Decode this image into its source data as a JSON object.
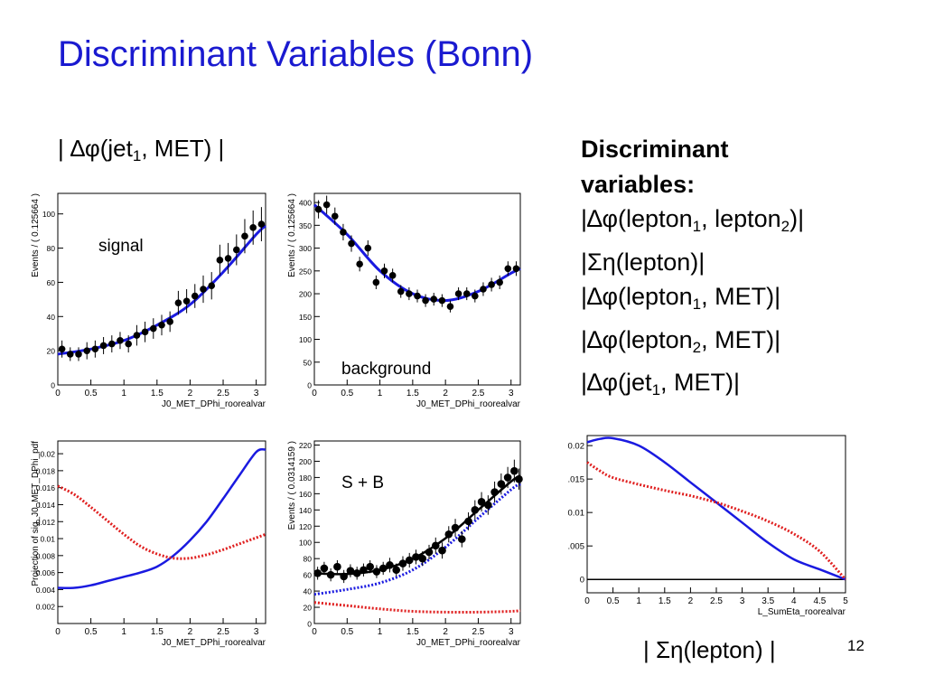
{
  "slide": {
    "title": "Discriminant Variables (Bonn)",
    "page_number": "12",
    "top_label": {
      "pre": "| ∆φ(jet",
      "sub": "1",
      "post": ", MET) |"
    },
    "bottom_label": "| Ση(lepton) |"
  },
  "variables": {
    "header_1": "Discriminant",
    "header_2": "variables:",
    "items": [
      {
        "pre": "|∆φ(lepton",
        "sub": "1",
        "mid": ", lepton",
        "sub2": "2",
        "post": ")|"
      },
      {
        "pre": "|Ση(lepton)|",
        "sub": "",
        "mid": "",
        "sub2": "",
        "post": ""
      },
      {
        "pre": "|∆φ(lepton",
        "sub": "1",
        "mid": ", MET)|",
        "sub2": "",
        "post": ""
      },
      {
        "pre": "|∆φ(lepton",
        "sub": "2",
        "mid": ", MET)|",
        "sub2": "",
        "post": ""
      },
      {
        "pre": "|∆φ(jet",
        "sub": "1",
        "mid": ", MET)|",
        "sub2": "",
        "post": ""
      }
    ]
  },
  "colors": {
    "title": "#1a1ad0",
    "fit_line": "#1a1ae0",
    "background_line": "#e02020",
    "points": "#000000"
  },
  "chart_data": [
    {
      "id": "signal",
      "type": "scatter",
      "xlabel": "J0_MET_DPhi_roorealvar",
      "ylabel": "Events / ( 0.125664 )",
      "annotation": "signal",
      "xlim": [
        0,
        3.1416
      ],
      "ylim": [
        0,
        112
      ],
      "xticks": [
        0,
        0.5,
        1,
        1.5,
        2,
        2.5,
        3
      ],
      "xtick_labels": [
        "0",
        "0.5",
        "1",
        "1.5",
        "2",
        "2.5",
        "3"
      ],
      "yticks": [
        0,
        20,
        40,
        60,
        80,
        100
      ],
      "ytick_labels": [
        "0",
        "20",
        "40",
        "60",
        "80",
        "100"
      ],
      "points": {
        "x": [
          0.063,
          0.188,
          0.314,
          0.44,
          0.565,
          0.691,
          0.817,
          0.942,
          1.068,
          1.194,
          1.319,
          1.445,
          1.571,
          1.696,
          1.822,
          1.948,
          2.073,
          2.199,
          2.325,
          2.45,
          2.576,
          2.702,
          2.827,
          2.953,
          3.079
        ],
        "y": [
          21,
          18,
          18,
          20,
          21,
          23,
          24,
          26,
          24,
          29,
          31,
          33,
          35,
          37,
          48,
          49,
          52,
          56,
          58,
          73,
          74,
          79,
          87,
          92,
          94
        ],
        "err": [
          5,
          4,
          4,
          5,
          5,
          5,
          5,
          5,
          5,
          6,
          6,
          6,
          6,
          6,
          7,
          7,
          7,
          8,
          8,
          9,
          9,
          9,
          10,
          10,
          10
        ]
      },
      "fit": {
        "x": [
          0,
          0.5,
          1,
          1.5,
          2,
          2.5,
          3,
          3.1416
        ],
        "y": [
          18,
          21,
          26,
          35,
          47,
          66,
          88,
          93
        ]
      }
    },
    {
      "id": "background",
      "type": "scatter",
      "xlabel": "J0_MET_DPhi_roorealvar",
      "ylabel": "Events / ( 0.125664 )",
      "annotation": "background",
      "xlim": [
        0,
        3.1416
      ],
      "ylim": [
        0,
        420
      ],
      "xticks": [
        0,
        0.5,
        1,
        1.5,
        2,
        2.5,
        3
      ],
      "xtick_labels": [
        "0",
        "0.5",
        "1",
        "1.5",
        "2",
        "2.5",
        "3"
      ],
      "yticks": [
        0,
        50,
        100,
        150,
        200,
        250,
        300,
        350,
        400
      ],
      "ytick_labels": [
        "0",
        "50",
        "100",
        "150",
        "200",
        "250",
        "300",
        "350",
        "400"
      ],
      "points": {
        "x": [
          0.063,
          0.188,
          0.314,
          0.44,
          0.565,
          0.691,
          0.817,
          0.942,
          1.068,
          1.194,
          1.319,
          1.445,
          1.571,
          1.696,
          1.822,
          1.948,
          2.073,
          2.199,
          2.325,
          2.45,
          2.576,
          2.702,
          2.827,
          2.953,
          3.079
        ],
        "y": [
          385,
          395,
          370,
          335,
          310,
          265,
          300,
          225,
          250,
          240,
          205,
          200,
          195,
          185,
          188,
          185,
          172,
          200,
          200,
          195,
          210,
          220,
          225,
          255,
          255
        ],
        "err": [
          20,
          20,
          19,
          18,
          18,
          16,
          17,
          15,
          16,
          15,
          14,
          14,
          14,
          14,
          14,
          14,
          13,
          14,
          14,
          14,
          15,
          15,
          15,
          16,
          16
        ]
      },
      "fit": {
        "x": [
          0,
          0.5,
          1,
          1.5,
          2,
          2.5,
          3,
          3.1416
        ],
        "y": [
          395,
          330,
          250,
          200,
          185,
          205,
          245,
          255
        ]
      }
    },
    {
      "id": "projection",
      "type": "line",
      "xlabel": "J0_MET_DPhi_roorealvar",
      "ylabel": "Projection of sig_J0_MET_DPhi_pdf",
      "xlim": [
        0,
        3.1416
      ],
      "ylim": [
        0,
        0.0215
      ],
      "xticks": [
        0,
        0.5,
        1,
        1.5,
        2,
        2.5,
        3
      ],
      "xtick_labels": [
        "0",
        "0.5",
        "1",
        "1.5",
        "2",
        "2.5",
        "3"
      ],
      "yticks": [
        0.002,
        0.004,
        0.006,
        0.008,
        0.01,
        0.012,
        0.014,
        0.016,
        0.018,
        0.02
      ],
      "ytick_labels": [
        "0.002",
        "0.004",
        "0.006",
        "0.008",
        "0.01",
        "0.012",
        "0.014",
        "0.016",
        "0.018",
        "0.02"
      ],
      "series": [
        {
          "color": "blue",
          "style": "solid",
          "x": [
            0,
            0.25,
            0.5,
            0.75,
            1,
            1.25,
            1.5,
            1.75,
            2,
            2.25,
            2.5,
            2.75,
            3,
            3.1416
          ],
          "y": [
            0.0042,
            0.0042,
            0.0045,
            0.005,
            0.0055,
            0.006,
            0.0067,
            0.008,
            0.0098,
            0.012,
            0.0147,
            0.0175,
            0.0202,
            0.0205
          ]
        },
        {
          "color": "red",
          "style": "dotted",
          "x": [
            0,
            0.25,
            0.5,
            0.75,
            1,
            1.25,
            1.5,
            1.75,
            2,
            2.25,
            2.5,
            2.75,
            3,
            3.1416
          ],
          "y": [
            0.0162,
            0.0152,
            0.0137,
            0.0121,
            0.0105,
            0.0091,
            0.0082,
            0.0077,
            0.0077,
            0.0081,
            0.0087,
            0.0094,
            0.0101,
            0.0105
          ]
        }
      ]
    },
    {
      "id": "s_plus_b",
      "type": "scatter",
      "xlabel": "J0_MET_DPhi_roorealvar",
      "ylabel": "Events / ( 0.0314159 )",
      "annotation": "S + B",
      "xlim": [
        0,
        3.1416
      ],
      "ylim": [
        0,
        225
      ],
      "xticks": [
        0,
        0.5,
        1,
        1.5,
        2,
        2.5,
        3
      ],
      "xtick_labels": [
        "0",
        "0.5",
        "1",
        "1.5",
        "2",
        "2.5",
        "3"
      ],
      "yticks": [
        0,
        20,
        40,
        60,
        80,
        100,
        120,
        140,
        160,
        180,
        200,
        220
      ],
      "ytick_labels": [
        "0",
        "20",
        "40",
        "60",
        "80",
        "100",
        "120",
        "140",
        "160",
        "180",
        "200",
        "220"
      ],
      "points": {
        "x": [
          0.05,
          0.15,
          0.25,
          0.35,
          0.45,
          0.55,
          0.65,
          0.75,
          0.85,
          0.95,
          1.05,
          1.15,
          1.25,
          1.35,
          1.45,
          1.55,
          1.65,
          1.75,
          1.85,
          1.95,
          2.05,
          2.15,
          2.25,
          2.35,
          2.45,
          2.55,
          2.65,
          2.75,
          2.85,
          2.95,
          3.05,
          3.12
        ],
        "y": [
          62,
          68,
          60,
          70,
          58,
          65,
          62,
          66,
          70,
          64,
          68,
          72,
          66,
          74,
          78,
          82,
          80,
          88,
          96,
          90,
          110,
          118,
          104,
          126,
          140,
          150,
          146,
          162,
          172,
          180,
          188,
          178
        ],
        "err": [
          8,
          8,
          8,
          8,
          8,
          8,
          8,
          8,
          8,
          8,
          8,
          9,
          8,
          9,
          9,
          9,
          9,
          9,
          10,
          10,
          10,
          11,
          10,
          11,
          12,
          12,
          12,
          13,
          13,
          13,
          14,
          13
        ]
      },
      "series": [
        {
          "name": "",
          "color": "black",
          "style": "solid",
          "x": [
            0,
            0.5,
            1,
            1.5,
            2,
            2.5,
            3,
            3.1416
          ],
          "y": [
            62,
            61,
            66,
            80,
            105,
            140,
            175,
            182
          ]
        },
        {
          "name": "",
          "color": "blue",
          "style": "dotted",
          "x": [
            0,
            0.5,
            1,
            1.5,
            2,
            2.5,
            3,
            3.1416
          ],
          "y": [
            36,
            42,
            50,
            66,
            94,
            130,
            165,
            172
          ]
        },
        {
          "name": "",
          "color": "red",
          "style": "dotted",
          "x": [
            0,
            0.5,
            1,
            1.5,
            2,
            2.5,
            3,
            3.1416
          ],
          "y": [
            26,
            22,
            18,
            15,
            14,
            14,
            15,
            16
          ]
        }
      ]
    },
    {
      "id": "sum_eta",
      "type": "line",
      "xlabel": "L_SumEta_roorealvar",
      "ylabel": "",
      "xlim": [
        0,
        5
      ],
      "ylim": [
        -0.002,
        0.0215
      ],
      "xticks": [
        0,
        0.5,
        1,
        1.5,
        2,
        2.5,
        3,
        3.5,
        4,
        4.5,
        5
      ],
      "xtick_labels": [
        "0",
        "0.5",
        "1",
        "1.5",
        "2",
        "2.5",
        "3",
        "3.5",
        "4",
        "4.5",
        "5"
      ],
      "yticks": [
        0,
        0.005,
        0.01,
        0.015,
        0.02
      ],
      "ytick_labels": [
        "0",
        ".005",
        "0.01",
        ".015",
        "0.02"
      ],
      "series": [
        {
          "color": "blue",
          "style": "solid",
          "x": [
            0,
            0.25,
            0.5,
            1,
            1.5,
            2,
            2.5,
            3,
            3.5,
            4,
            4.5,
            5
          ],
          "y": [
            0.0205,
            0.021,
            0.0211,
            0.02,
            0.0175,
            0.0145,
            0.0115,
            0.0085,
            0.0055,
            0.003,
            0.0015,
            0.0
          ]
        },
        {
          "color": "red",
          "style": "dotted",
          "x": [
            0,
            0.25,
            0.5,
            1,
            1.5,
            2,
            2.5,
            3,
            3.5,
            4,
            4.5,
            5
          ],
          "y": [
            0.0175,
            0.0162,
            0.0152,
            0.0142,
            0.0133,
            0.0125,
            0.0115,
            0.0102,
            0.0087,
            0.0068,
            0.0042,
            0.0
          ]
        }
      ]
    }
  ]
}
